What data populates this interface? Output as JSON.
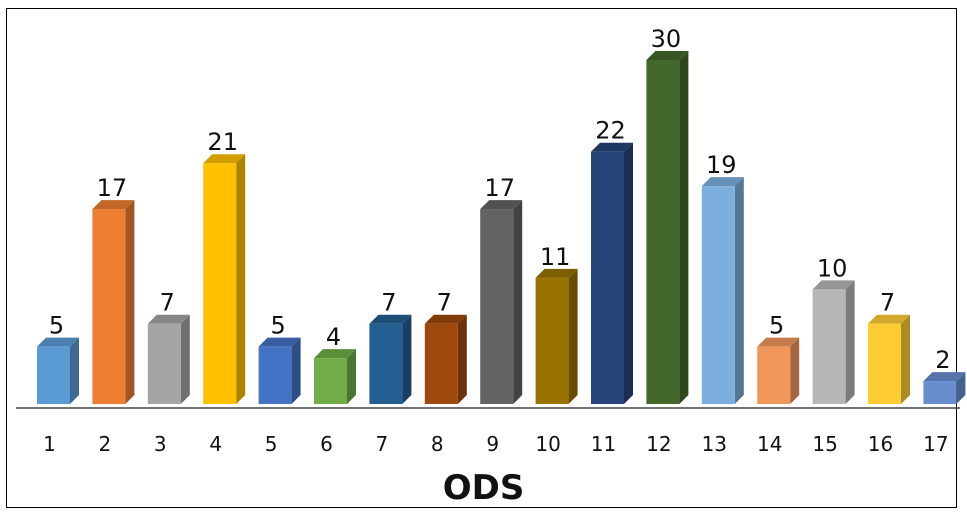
{
  "chart_data": {
    "type": "bar",
    "categories": [
      "1",
      "2",
      "3",
      "4",
      "5",
      "6",
      "7",
      "8",
      "9",
      "10",
      "11",
      "12",
      "13",
      "14",
      "15",
      "16",
      "17"
    ],
    "values": [
      5,
      17,
      7,
      21,
      5,
      4,
      7,
      7,
      17,
      11,
      22,
      30,
      19,
      5,
      10,
      7,
      2
    ],
    "colors": [
      "#5b9bd5",
      "#ed7d31",
      "#a5a5a5",
      "#ffc000",
      "#4472c4",
      "#70ad47",
      "#255e91",
      "#9e480e",
      "#636363",
      "#997300",
      "#264478",
      "#43682b",
      "#7cafdd",
      "#f1975a",
      "#b7b7b7",
      "#ffcd33",
      "#698ed0"
    ],
    "title": "",
    "xlabel": "ODS",
    "ylabel": "",
    "ylim": [
      0,
      30
    ],
    "grid": false,
    "legend": "none",
    "style": "3d-bars"
  }
}
